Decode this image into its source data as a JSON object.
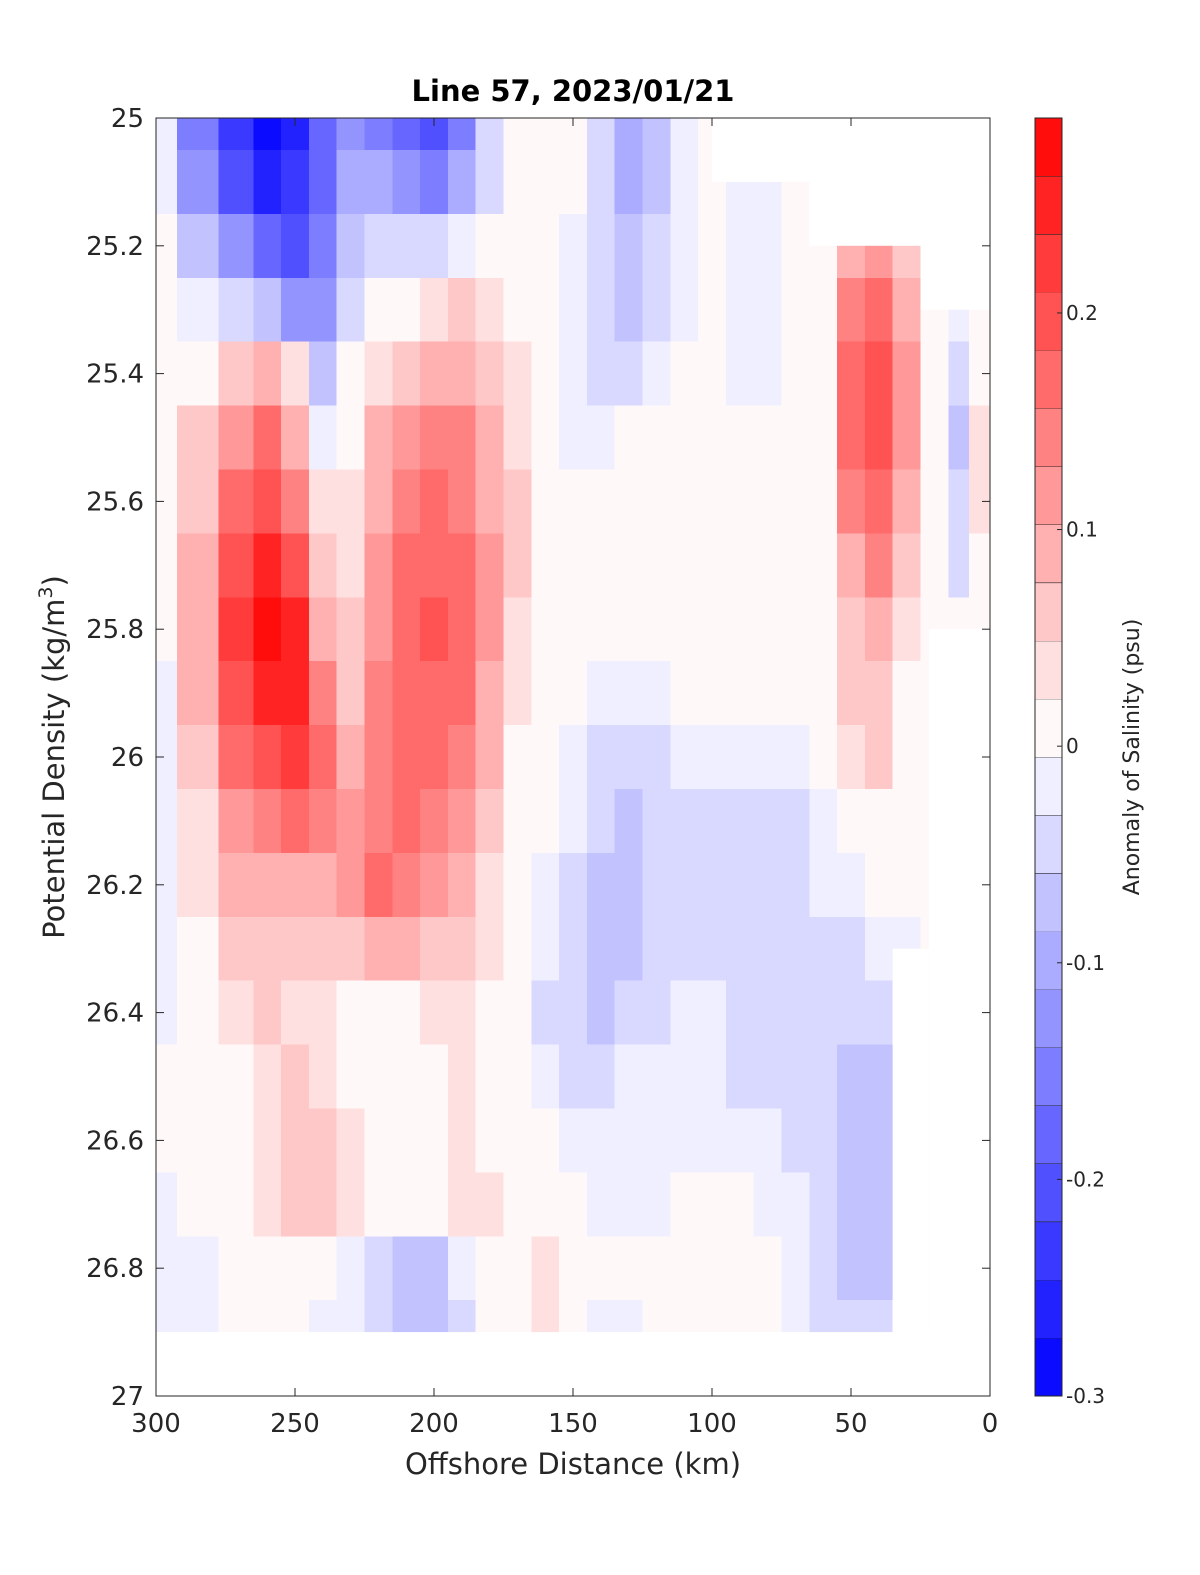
{
  "chart_data": {
    "type": "heatmap",
    "title": "Line 57, 2023/01/21",
    "xlabel": "Offshore Distance (km)",
    "ylabel_main": "Potential Density (kg/m",
    "ylabel_sup": "3",
    "ylabel_close": ")",
    "xlim": [
      300,
      0
    ],
    "ylim": [
      25,
      27
    ],
    "x_ticks": [
      300,
      250,
      200,
      150,
      100,
      50,
      0
    ],
    "x_tick_labels": [
      "300",
      "250",
      "200",
      "150",
      "100",
      "50",
      "0"
    ],
    "y_ticks": [
      25,
      25.2,
      25.4,
      25.6,
      25.8,
      26,
      26.2,
      26.4,
      26.6,
      26.8,
      27
    ],
    "y_tick_labels": [
      "25",
      "25.2",
      "25.4",
      "25.6",
      "25.8",
      "26",
      "26.2",
      "26.4",
      "26.6",
      "26.8",
      "27"
    ],
    "colorbar": {
      "label": "Anomaly of Salinity (psu)",
      "range": [
        -0.3,
        0.29
      ],
      "ticks": [
        -0.3,
        -0.2,
        -0.1,
        0,
        0.1,
        0.2
      ],
      "tick_labels": [
        "-0.3",
        "-0.2",
        "-0.1",
        "0",
        "0.1",
        "0.2"
      ],
      "color_min": "#0000ff",
      "color_zero": "#ffffff",
      "color_max": "#ff0000"
    },
    "field_x": [
      300,
      285,
      270,
      260,
      250,
      240,
      230,
      220,
      210,
      200,
      190,
      180,
      170,
      160,
      150,
      140,
      130,
      120,
      110,
      100,
      90,
      80,
      70,
      60,
      50,
      40,
      30,
      20,
      10,
      5
    ],
    "field_y": [
      25.0,
      25.1,
      25.2,
      25.3,
      25.4,
      25.5,
      25.6,
      25.7,
      25.8,
      25.9,
      26.0,
      26.1,
      26.2,
      26.3,
      26.4,
      26.5,
      26.6,
      26.7,
      26.8,
      26.9
    ],
    "anomaly": [
      [
        -0.03,
        -0.16,
        -0.22,
        -0.28,
        -0.26,
        -0.18,
        -0.12,
        -0.15,
        -0.18,
        -0.2,
        -0.14,
        -0.05,
        0,
        0,
        0,
        -0.05,
        -0.1,
        -0.06,
        -0.02,
        0,
        0,
        0,
        0,
        0,
        0,
        0,
        0,
        0,
        0,
        0
      ],
      [
        -0.02,
        -0.13,
        -0.2,
        -0.26,
        -0.24,
        -0.17,
        -0.1,
        -0.1,
        -0.13,
        -0.15,
        -0.1,
        -0.04,
        0,
        0,
        0,
        -0.05,
        -0.09,
        -0.06,
        -0.02,
        0,
        -0.02,
        -0.03,
        0,
        0,
        0,
        0,
        0,
        0,
        0,
        0
      ],
      [
        0,
        -0.06,
        -0.12,
        -0.18,
        -0.2,
        -0.15,
        -0.06,
        -0.05,
        -0.05,
        -0.04,
        -0.02,
        0,
        0,
        0,
        -0.02,
        -0.05,
        -0.08,
        -0.05,
        -0.02,
        0,
        -0.02,
        -0.03,
        0,
        0,
        0.1,
        0.12,
        0.06,
        0,
        0,
        0
      ],
      [
        0,
        -0.02,
        -0.05,
        -0.08,
        -0.12,
        -0.12,
        -0.04,
        0,
        0.02,
        0.04,
        0.05,
        0.04,
        0,
        0,
        -0.02,
        -0.05,
        -0.07,
        -0.04,
        -0.02,
        0,
        -0.02,
        -0.02,
        0,
        0,
        0.14,
        0.18,
        0.1,
        0,
        -0.03,
        0
      ],
      [
        0,
        0.02,
        0.05,
        0.08,
        0.03,
        -0.06,
        0,
        0.04,
        0.07,
        0.09,
        0.1,
        0.07,
        0.03,
        0,
        -0.02,
        -0.04,
        -0.05,
        -0.03,
        0,
        0,
        -0.01,
        -0.02,
        0,
        0,
        0.16,
        0.2,
        0.12,
        0,
        -0.05,
        0.02
      ],
      [
        0,
        0.05,
        0.12,
        0.16,
        0.1,
        -0.02,
        0.02,
        0.08,
        0.12,
        0.14,
        0.14,
        0.09,
        0.04,
        0,
        -0.01,
        -0.02,
        0,
        0,
        0,
        0,
        0,
        0,
        0,
        0,
        0.16,
        0.2,
        0.12,
        0,
        -0.06,
        0.03
      ],
      [
        0,
        0.07,
        0.17,
        0.2,
        0.15,
        0.03,
        0.03,
        0.1,
        0.14,
        0.16,
        0.15,
        0.1,
        0.05,
        0,
        0,
        0,
        0,
        0,
        0,
        0,
        0,
        0,
        0,
        0,
        0.14,
        0.18,
        0.1,
        0,
        -0.05,
        0.03
      ],
      [
        0,
        0.08,
        0.2,
        0.24,
        0.2,
        0.06,
        0.04,
        0.11,
        0.16,
        0.18,
        0.16,
        0.11,
        0.05,
        0,
        0,
        0,
        0,
        0,
        0,
        0,
        0,
        0,
        0,
        0,
        0.1,
        0.14,
        0.07,
        0,
        -0.04,
        0.02
      ],
      [
        0,
        0.09,
        0.21,
        0.27,
        0.24,
        0.1,
        0.05,
        0.12,
        0.17,
        0.19,
        0.17,
        0.11,
        0.04,
        0,
        0,
        0,
        0,
        0,
        0,
        0,
        0,
        0,
        0,
        0,
        0.07,
        0.1,
        0.04,
        0,
        0,
        0
      ],
      [
        -0.03,
        0.08,
        0.2,
        0.24,
        0.25,
        0.13,
        0.07,
        0.13,
        0.17,
        0.18,
        0.16,
        0.1,
        0.03,
        0,
        0,
        -0.02,
        -0.03,
        -0.02,
        0,
        0,
        0,
        0,
        0,
        0,
        0.05,
        0.07,
        0.02,
        0,
        0,
        0
      ],
      [
        -0.03,
        0.06,
        0.16,
        0.2,
        0.22,
        0.16,
        0.1,
        0.14,
        0.16,
        0.16,
        0.14,
        0.08,
        0.02,
        0,
        -0.02,
        -0.04,
        -0.05,
        -0.04,
        -0.03,
        -0.03,
        -0.03,
        -0.03,
        -0.03,
        0,
        0.03,
        0.05,
        0,
        0,
        0,
        0
      ],
      [
        -0.03,
        0.04,
        0.12,
        0.15,
        0.16,
        0.14,
        0.12,
        0.15,
        0.16,
        0.15,
        0.11,
        0.06,
        0.01,
        0,
        -0.03,
        -0.05,
        -0.06,
        -0.05,
        -0.04,
        -0.04,
        -0.04,
        -0.04,
        -0.04,
        -0.03,
        0,
        0,
        0,
        0,
        0,
        0
      ],
      [
        -0.03,
        0.03,
        0.08,
        0.1,
        0.1,
        0.1,
        0.12,
        0.16,
        0.15,
        0.12,
        0.08,
        0.04,
        0,
        -0.02,
        -0.04,
        -0.06,
        -0.06,
        -0.05,
        -0.04,
        -0.04,
        -0.04,
        -0.04,
        -0.04,
        -0.03,
        -0.02,
        0,
        0,
        0,
        0,
        0
      ],
      [
        -0.03,
        0.02,
        0.05,
        0.06,
        0.06,
        0.06,
        0.06,
        0.08,
        0.08,
        0.07,
        0.05,
        0.03,
        0,
        -0.03,
        -0.05,
        -0.06,
        -0.06,
        -0.05,
        -0.04,
        -0.04,
        -0.04,
        -0.04,
        -0.04,
        -0.04,
        -0.04,
        -0.03,
        -0.02,
        0,
        0,
        0
      ],
      [
        -0.02,
        0.01,
        0.03,
        0.05,
        0.04,
        0.04,
        0,
        0,
        0,
        0.03,
        0.04,
        0.02,
        0,
        -0.04,
        -0.05,
        -0.06,
        -0.05,
        -0.04,
        -0.03,
        -0.02,
        -0.04,
        -0.04,
        -0.04,
        -0.04,
        -0.04,
        -0.04,
        -0.03,
        0,
        0,
        0
      ],
      [
        0,
        0.01,
        0.02,
        0.04,
        0.05,
        0.04,
        0,
        0,
        0,
        0.02,
        0.03,
        0.02,
        0,
        -0.03,
        -0.05,
        -0.04,
        -0.03,
        -0.03,
        -0.03,
        -0.03,
        -0.04,
        -0.04,
        -0.04,
        -0.05,
        -0.06,
        -0.06,
        -0.04,
        0,
        0,
        0
      ],
      [
        0,
        0.01,
        0.02,
        0.04,
        0.05,
        0.05,
        0.03,
        0,
        0,
        0.02,
        0.03,
        0.02,
        0,
        0,
        -0.02,
        -0.03,
        -0.03,
        -0.03,
        -0.03,
        -0.02,
        -0.03,
        -0.03,
        -0.04,
        -0.05,
        -0.07,
        -0.07,
        -0.05,
        0,
        0,
        0
      ],
      [
        -0.02,
        0,
        0.01,
        0.03,
        0.05,
        0.05,
        0.03,
        0,
        0,
        0.02,
        0.03,
        0.03,
        0.02,
        0,
        0,
        -0.02,
        -0.02,
        -0.02,
        0,
        0,
        0,
        -0.02,
        -0.03,
        -0.05,
        -0.07,
        -0.07,
        -0.05,
        0,
        0,
        0
      ],
      [
        -0.03,
        -0.02,
        0,
        0,
        0.01,
        0,
        -0.02,
        -0.05,
        -0.07,
        -0.06,
        -0.03,
        0,
        0.02,
        0.03,
        0.01,
        0,
        0,
        0,
        0,
        0,
        0,
        0,
        -0.02,
        -0.04,
        -0.06,
        -0.06,
        -0.04,
        0,
        0,
        0
      ],
      [
        -0.03,
        -0.02,
        0,
        0,
        0,
        -0.01,
        -0.03,
        -0.05,
        -0.07,
        -0.07,
        -0.04,
        0,
        0.02,
        0.03,
        0,
        -0.02,
        -0.02,
        0,
        0,
        0,
        0,
        0.02,
        -0.02,
        -0.04,
        -0.05,
        -0.05,
        -0.03,
        0,
        0,
        0
      ]
    ],
    "masked_regions": [
      {
        "x": [
          100,
          0
        ],
        "y": [
          25.0,
          25.1
        ]
      },
      {
        "x": [
          65,
          0
        ],
        "y": [
          25.1,
          25.2
        ]
      },
      {
        "x": [
          25,
          0
        ],
        "y": [
          25.2,
          25.3
        ]
      },
      {
        "x": [
          22,
          0
        ],
        "y": [
          25.8,
          26.9
        ]
      },
      {
        "x": [
          35,
          22
        ],
        "y": [
          26.3,
          26.9
        ]
      },
      {
        "x": [
          300,
          0
        ],
        "y": [
          26.9,
          27.0
        ]
      }
    ],
    "grid": false,
    "legend": "colorbar-right"
  }
}
